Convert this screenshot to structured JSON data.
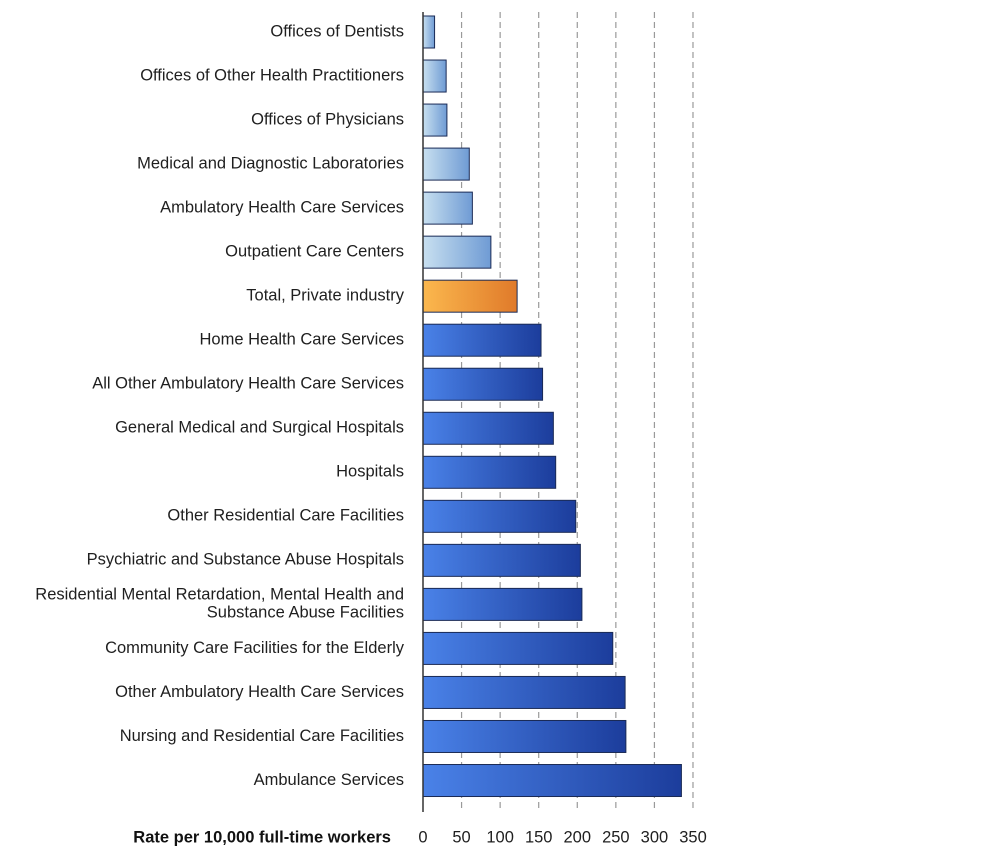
{
  "chart_data": {
    "type": "bar",
    "orientation": "horizontal",
    "categories": [
      "Offices of Dentists",
      "Offices of Other Health Practitioners",
      "Offices of Physicians",
      "Medical and Diagnostic Laboratories",
      "Ambulatory Health Care Services",
      "Outpatient Care Centers",
      "Total, Private industry",
      "Home Health Care Services",
      "All Other Ambulatory Health Care Services",
      "General Medical and Surgical Hospitals",
      "Hospitals",
      "Other Residential Care Facilities",
      "Psychiatric and Substance Abuse Hospitals",
      "Residential Mental Retardation, Mental Health and\nSubstance Abuse  Facilities",
      "Community Care Facilities for the Elderly",
      "Other Ambulatory Health Care Services",
      "Nursing and Residential Care Facilities",
      "Ambulance Services"
    ],
    "values": [
      15,
      30,
      31,
      60,
      64,
      88,
      122,
      153,
      155,
      169,
      172,
      198,
      204,
      206,
      246,
      262,
      263,
      335
    ],
    "bar_groups": [
      "light",
      "light",
      "light",
      "light",
      "light",
      "light",
      "highlight",
      "dark",
      "dark",
      "dark",
      "dark",
      "dark",
      "dark",
      "dark",
      "dark",
      "dark",
      "dark",
      "dark"
    ],
    "title": "",
    "xlabel": "Rate per 10,000 full-time workers",
    "ylabel": "",
    "xlim": [
      0,
      350
    ],
    "xticks": [
      0,
      50,
      100,
      150,
      200,
      250,
      300,
      350
    ],
    "grid": "vertical dashed",
    "legend": "none",
    "colors": {
      "light_start": "#c8e0f0",
      "light_end": "#6f9bd4",
      "highlight_start": "#fbb84e",
      "highlight_end": "#e07a2a",
      "dark_start": "#4a82e8",
      "dark_end": "#1c3d9c",
      "bar_edge": "#1a2a55",
      "grid": "#9a9a9a",
      "axis": "#333333"
    }
  }
}
